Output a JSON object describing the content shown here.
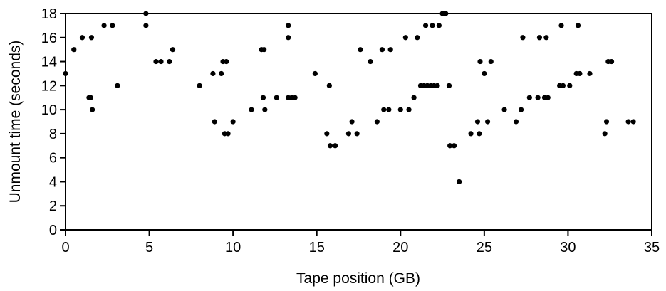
{
  "chart_data": {
    "type": "scatter",
    "title": "",
    "xlabel": "Tape position (GB)",
    "ylabel": "Unmount time (seconds)",
    "xlim": [
      0,
      35
    ],
    "ylim": [
      0,
      18
    ],
    "xticks": [
      "0",
      "5",
      "10",
      "15",
      "20",
      "25",
      "30",
      "35"
    ],
    "yticks": [
      "0",
      "2",
      "4",
      "6",
      "8",
      "10",
      "12",
      "14",
      "16",
      "18"
    ],
    "grid": false,
    "legend": "none",
    "marker_color": "#000000",
    "series": [
      {
        "points": [
          [
            0.0,
            13
          ],
          [
            0.5,
            15
          ],
          [
            1.0,
            16
          ],
          [
            1.4,
            11
          ],
          [
            1.5,
            11
          ],
          [
            1.55,
            16
          ],
          [
            1.6,
            10
          ],
          [
            2.3,
            17
          ],
          [
            2.8,
            17
          ],
          [
            3.1,
            12
          ],
          [
            4.8,
            18
          ],
          [
            4.8,
            17
          ],
          [
            5.4,
            14
          ],
          [
            5.7,
            14
          ],
          [
            6.2,
            14
          ],
          [
            6.4,
            15
          ],
          [
            8.0,
            12
          ],
          [
            8.8,
            13
          ],
          [
            8.9,
            9
          ],
          [
            9.3,
            13
          ],
          [
            9.4,
            14
          ],
          [
            9.5,
            8
          ],
          [
            9.6,
            14
          ],
          [
            9.7,
            8
          ],
          [
            10.0,
            9
          ],
          [
            11.1,
            10
          ],
          [
            11.7,
            15
          ],
          [
            11.8,
            11
          ],
          [
            11.85,
            15
          ],
          [
            11.9,
            10
          ],
          [
            12.6,
            11
          ],
          [
            13.3,
            17
          ],
          [
            13.3,
            16
          ],
          [
            13.3,
            11
          ],
          [
            13.5,
            11
          ],
          [
            13.7,
            11
          ],
          [
            14.9,
            13
          ],
          [
            15.6,
            8
          ],
          [
            15.75,
            12
          ],
          [
            15.8,
            7
          ],
          [
            16.1,
            7
          ],
          [
            16.9,
            8
          ],
          [
            17.1,
            9
          ],
          [
            17.4,
            8
          ],
          [
            17.6,
            15
          ],
          [
            18.2,
            14
          ],
          [
            18.6,
            9
          ],
          [
            18.9,
            15
          ],
          [
            19.0,
            10
          ],
          [
            19.3,
            10
          ],
          [
            19.4,
            15
          ],
          [
            20.0,
            10
          ],
          [
            20.3,
            16
          ],
          [
            20.5,
            10
          ],
          [
            20.8,
            11
          ],
          [
            21.0,
            16
          ],
          [
            21.2,
            12
          ],
          [
            21.4,
            12
          ],
          [
            21.5,
            17
          ],
          [
            21.6,
            12
          ],
          [
            21.8,
            12
          ],
          [
            21.9,
            17
          ],
          [
            22.0,
            12
          ],
          [
            22.2,
            12
          ],
          [
            22.3,
            17
          ],
          [
            22.5,
            18
          ],
          [
            22.7,
            18
          ],
          [
            22.9,
            12
          ],
          [
            22.95,
            7
          ],
          [
            23.2,
            7
          ],
          [
            23.5,
            4
          ],
          [
            24.2,
            8
          ],
          [
            24.6,
            9
          ],
          [
            24.7,
            8
          ],
          [
            24.75,
            14
          ],
          [
            25.0,
            13
          ],
          [
            25.2,
            9
          ],
          [
            25.4,
            14
          ],
          [
            26.2,
            10
          ],
          [
            26.9,
            9
          ],
          [
            27.2,
            10
          ],
          [
            27.3,
            16
          ],
          [
            27.7,
            11
          ],
          [
            28.2,
            11
          ],
          [
            28.3,
            16
          ],
          [
            28.6,
            11
          ],
          [
            28.7,
            16
          ],
          [
            28.8,
            11
          ],
          [
            29.5,
            12
          ],
          [
            29.6,
            17
          ],
          [
            29.7,
            12
          ],
          [
            30.1,
            12
          ],
          [
            30.5,
            13
          ],
          [
            30.6,
            17
          ],
          [
            30.7,
            13
          ],
          [
            31.3,
            13
          ],
          [
            32.2,
            8
          ],
          [
            32.3,
            9
          ],
          [
            32.4,
            14
          ],
          [
            32.6,
            14
          ],
          [
            33.6,
            9
          ],
          [
            33.9,
            9
          ]
        ]
      }
    ]
  }
}
